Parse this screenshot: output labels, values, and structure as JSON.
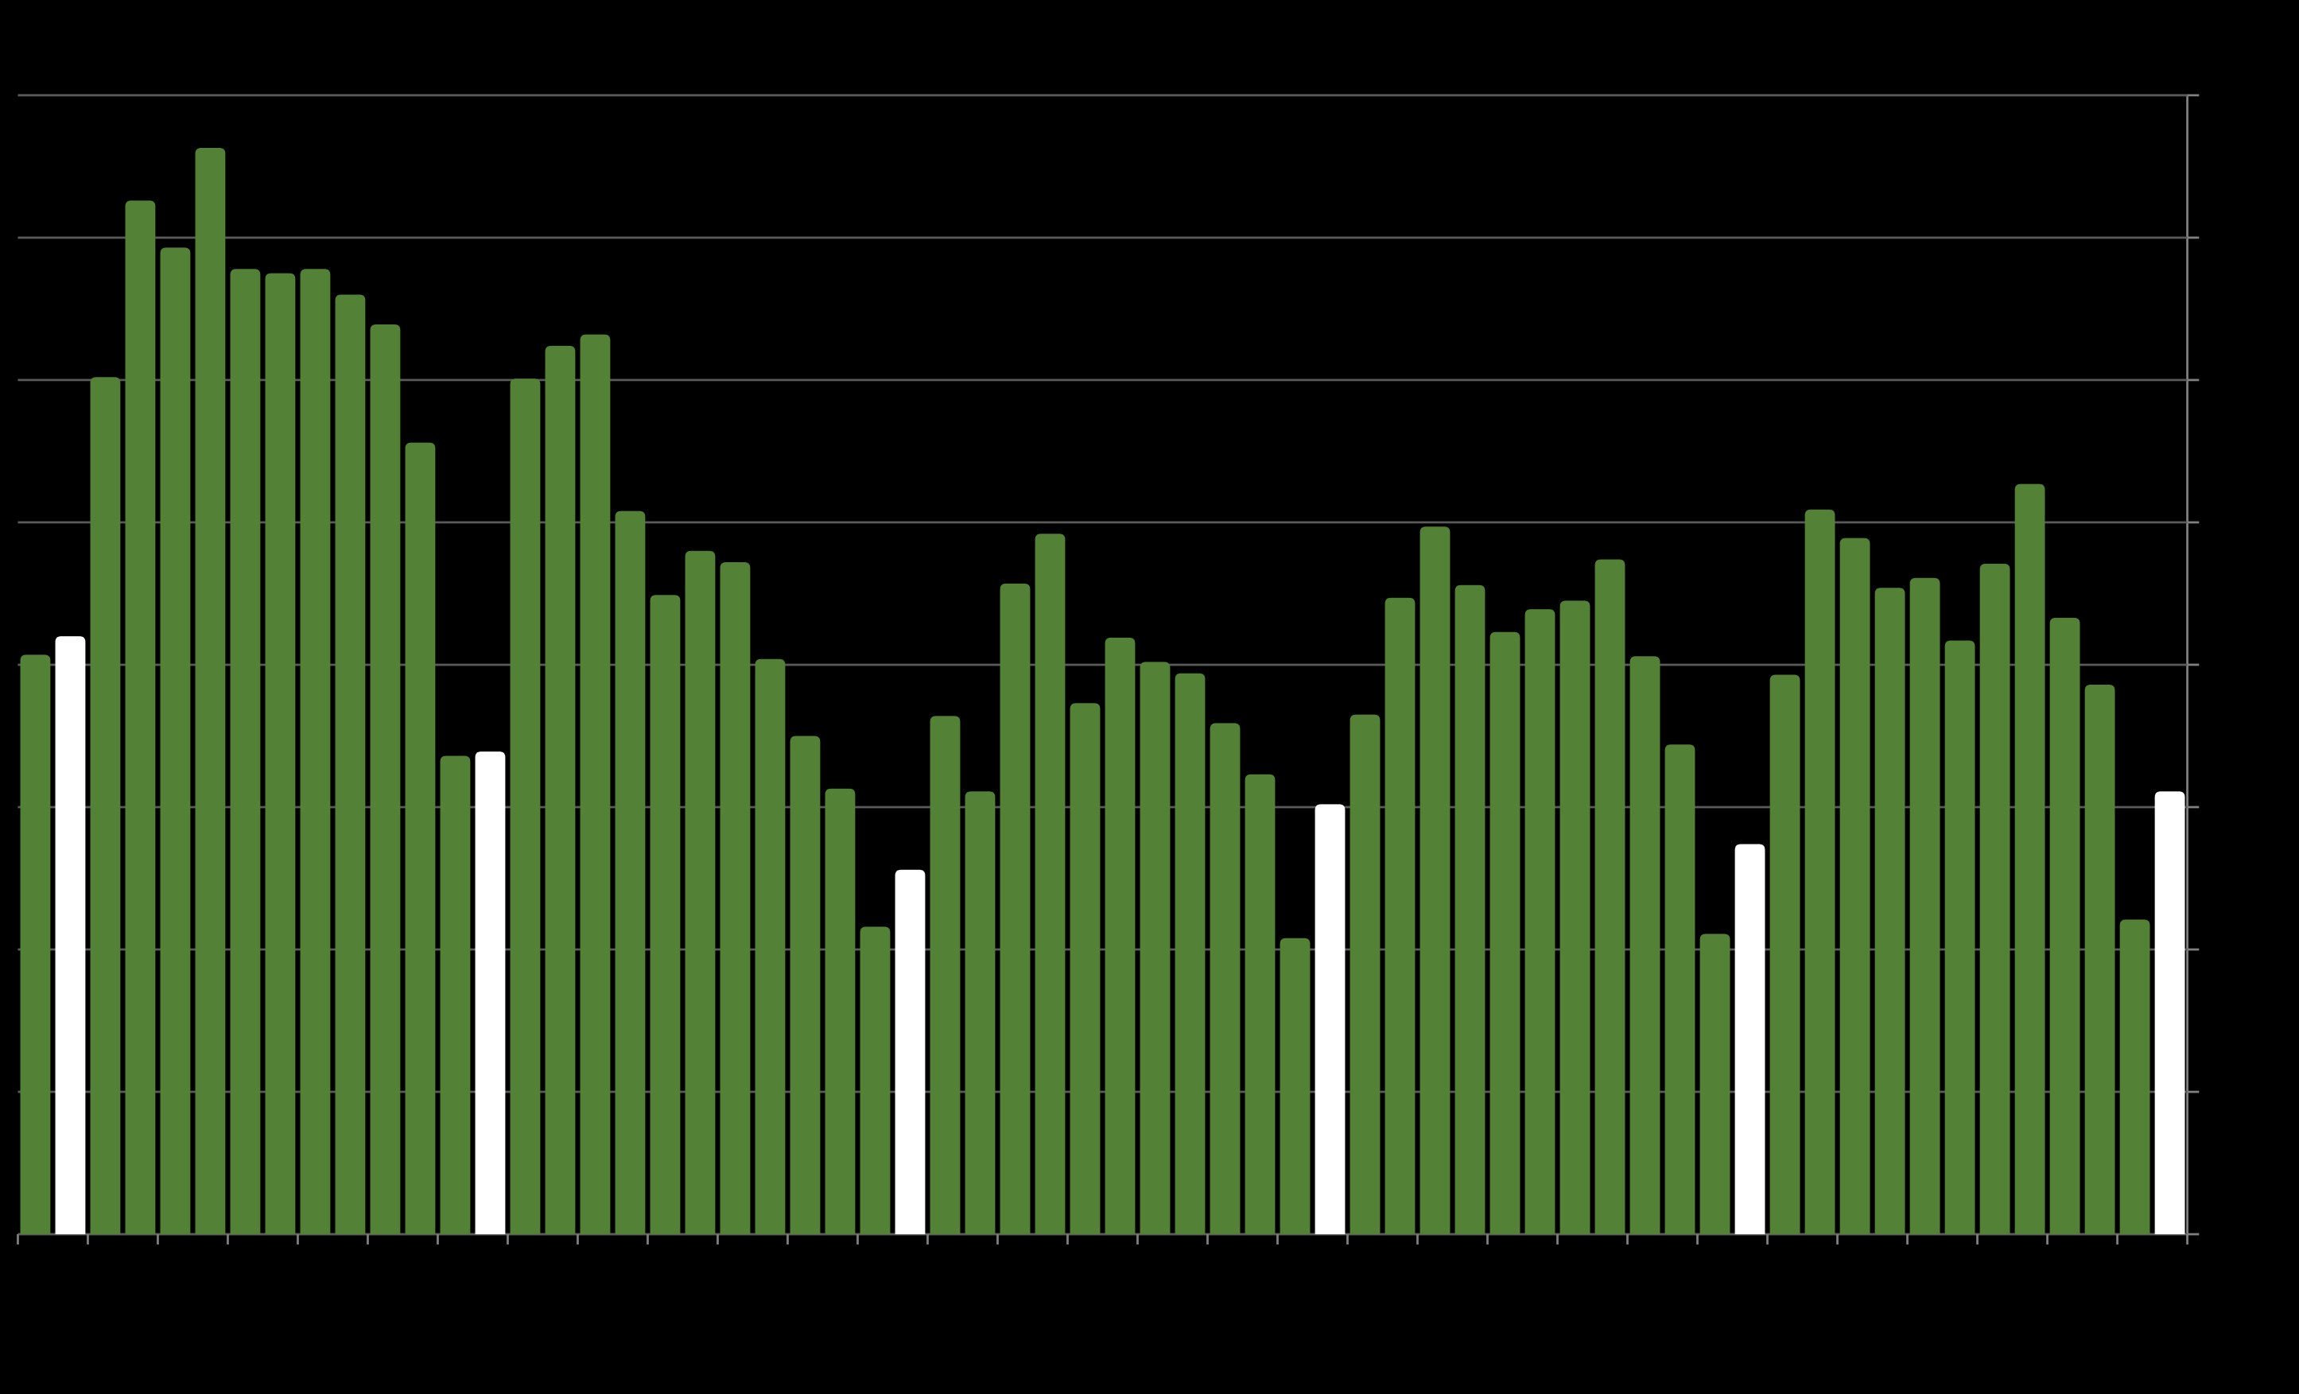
{
  "chart_data": {
    "type": "bar",
    "categories": [
      null,
      null,
      null,
      null,
      null,
      null,
      null,
      null,
      null,
      null,
      null,
      null,
      null,
      null,
      null,
      null,
      null,
      null,
      null,
      null,
      null,
      null,
      null,
      null,
      null,
      null,
      null,
      null,
      null,
      null,
      null,
      null,
      null,
      null,
      null,
      null,
      null,
      null,
      null,
      null,
      null,
      null,
      null,
      null,
      null,
      null,
      null,
      null,
      null,
      null,
      null,
      null,
      null,
      null,
      null,
      null,
      null,
      null,
      null,
      null,
      null,
      null
    ],
    "values": [
      4.07,
      4.2,
      6.02,
      7.26,
      6.93,
      7.63,
      6.78,
      6.75,
      6.78,
      6.6,
      6.39,
      5.56,
      3.36,
      3.39,
      6.01,
      6.24,
      6.32,
      5.08,
      4.49,
      4.8,
      4.72,
      4.04,
      3.5,
      3.13,
      2.16,
      2.56,
      3.64,
      3.11,
      4.57,
      4.92,
      3.73,
      4.19,
      4.02,
      3.94,
      3.59,
      3.23,
      2.08,
      3.02,
      3.65,
      4.47,
      4.97,
      4.56,
      4.23,
      4.39,
      4.45,
      4.74,
      4.06,
      3.44,
      2.11,
      2.74,
      3.93,
      5.09,
      4.89,
      4.54,
      4.61,
      4.17,
      4.71,
      5.27,
      4.33,
      3.86,
      2.21,
      3.11
    ],
    "colors": [
      "#538135",
      "#ffffff",
      "#538135",
      "#538135",
      "#538135",
      "#538135",
      "#538135",
      "#538135",
      "#538135",
      "#538135",
      "#538135",
      "#538135",
      "#538135",
      "#ffffff",
      "#538135",
      "#538135",
      "#538135",
      "#538135",
      "#538135",
      "#538135",
      "#538135",
      "#538135",
      "#538135",
      "#538135",
      "#538135",
      "#ffffff",
      "#538135",
      "#538135",
      "#538135",
      "#538135",
      "#538135",
      "#538135",
      "#538135",
      "#538135",
      "#538135",
      "#538135",
      "#538135",
      "#ffffff",
      "#538135",
      "#538135",
      "#538135",
      "#538135",
      "#538135",
      "#538135",
      "#538135",
      "#538135",
      "#538135",
      "#538135",
      "#538135",
      "#ffffff",
      "#538135",
      "#538135",
      "#538135",
      "#538135",
      "#538135",
      "#538135",
      "#538135",
      "#538135",
      "#538135",
      "#538135",
      "#538135",
      "#ffffff"
    ],
    "ylim": [
      0,
      8
    ],
    "yticks": [
      0,
      1,
      2,
      3,
      4,
      5,
      6,
      7,
      8
    ],
    "grid": true
  }
}
